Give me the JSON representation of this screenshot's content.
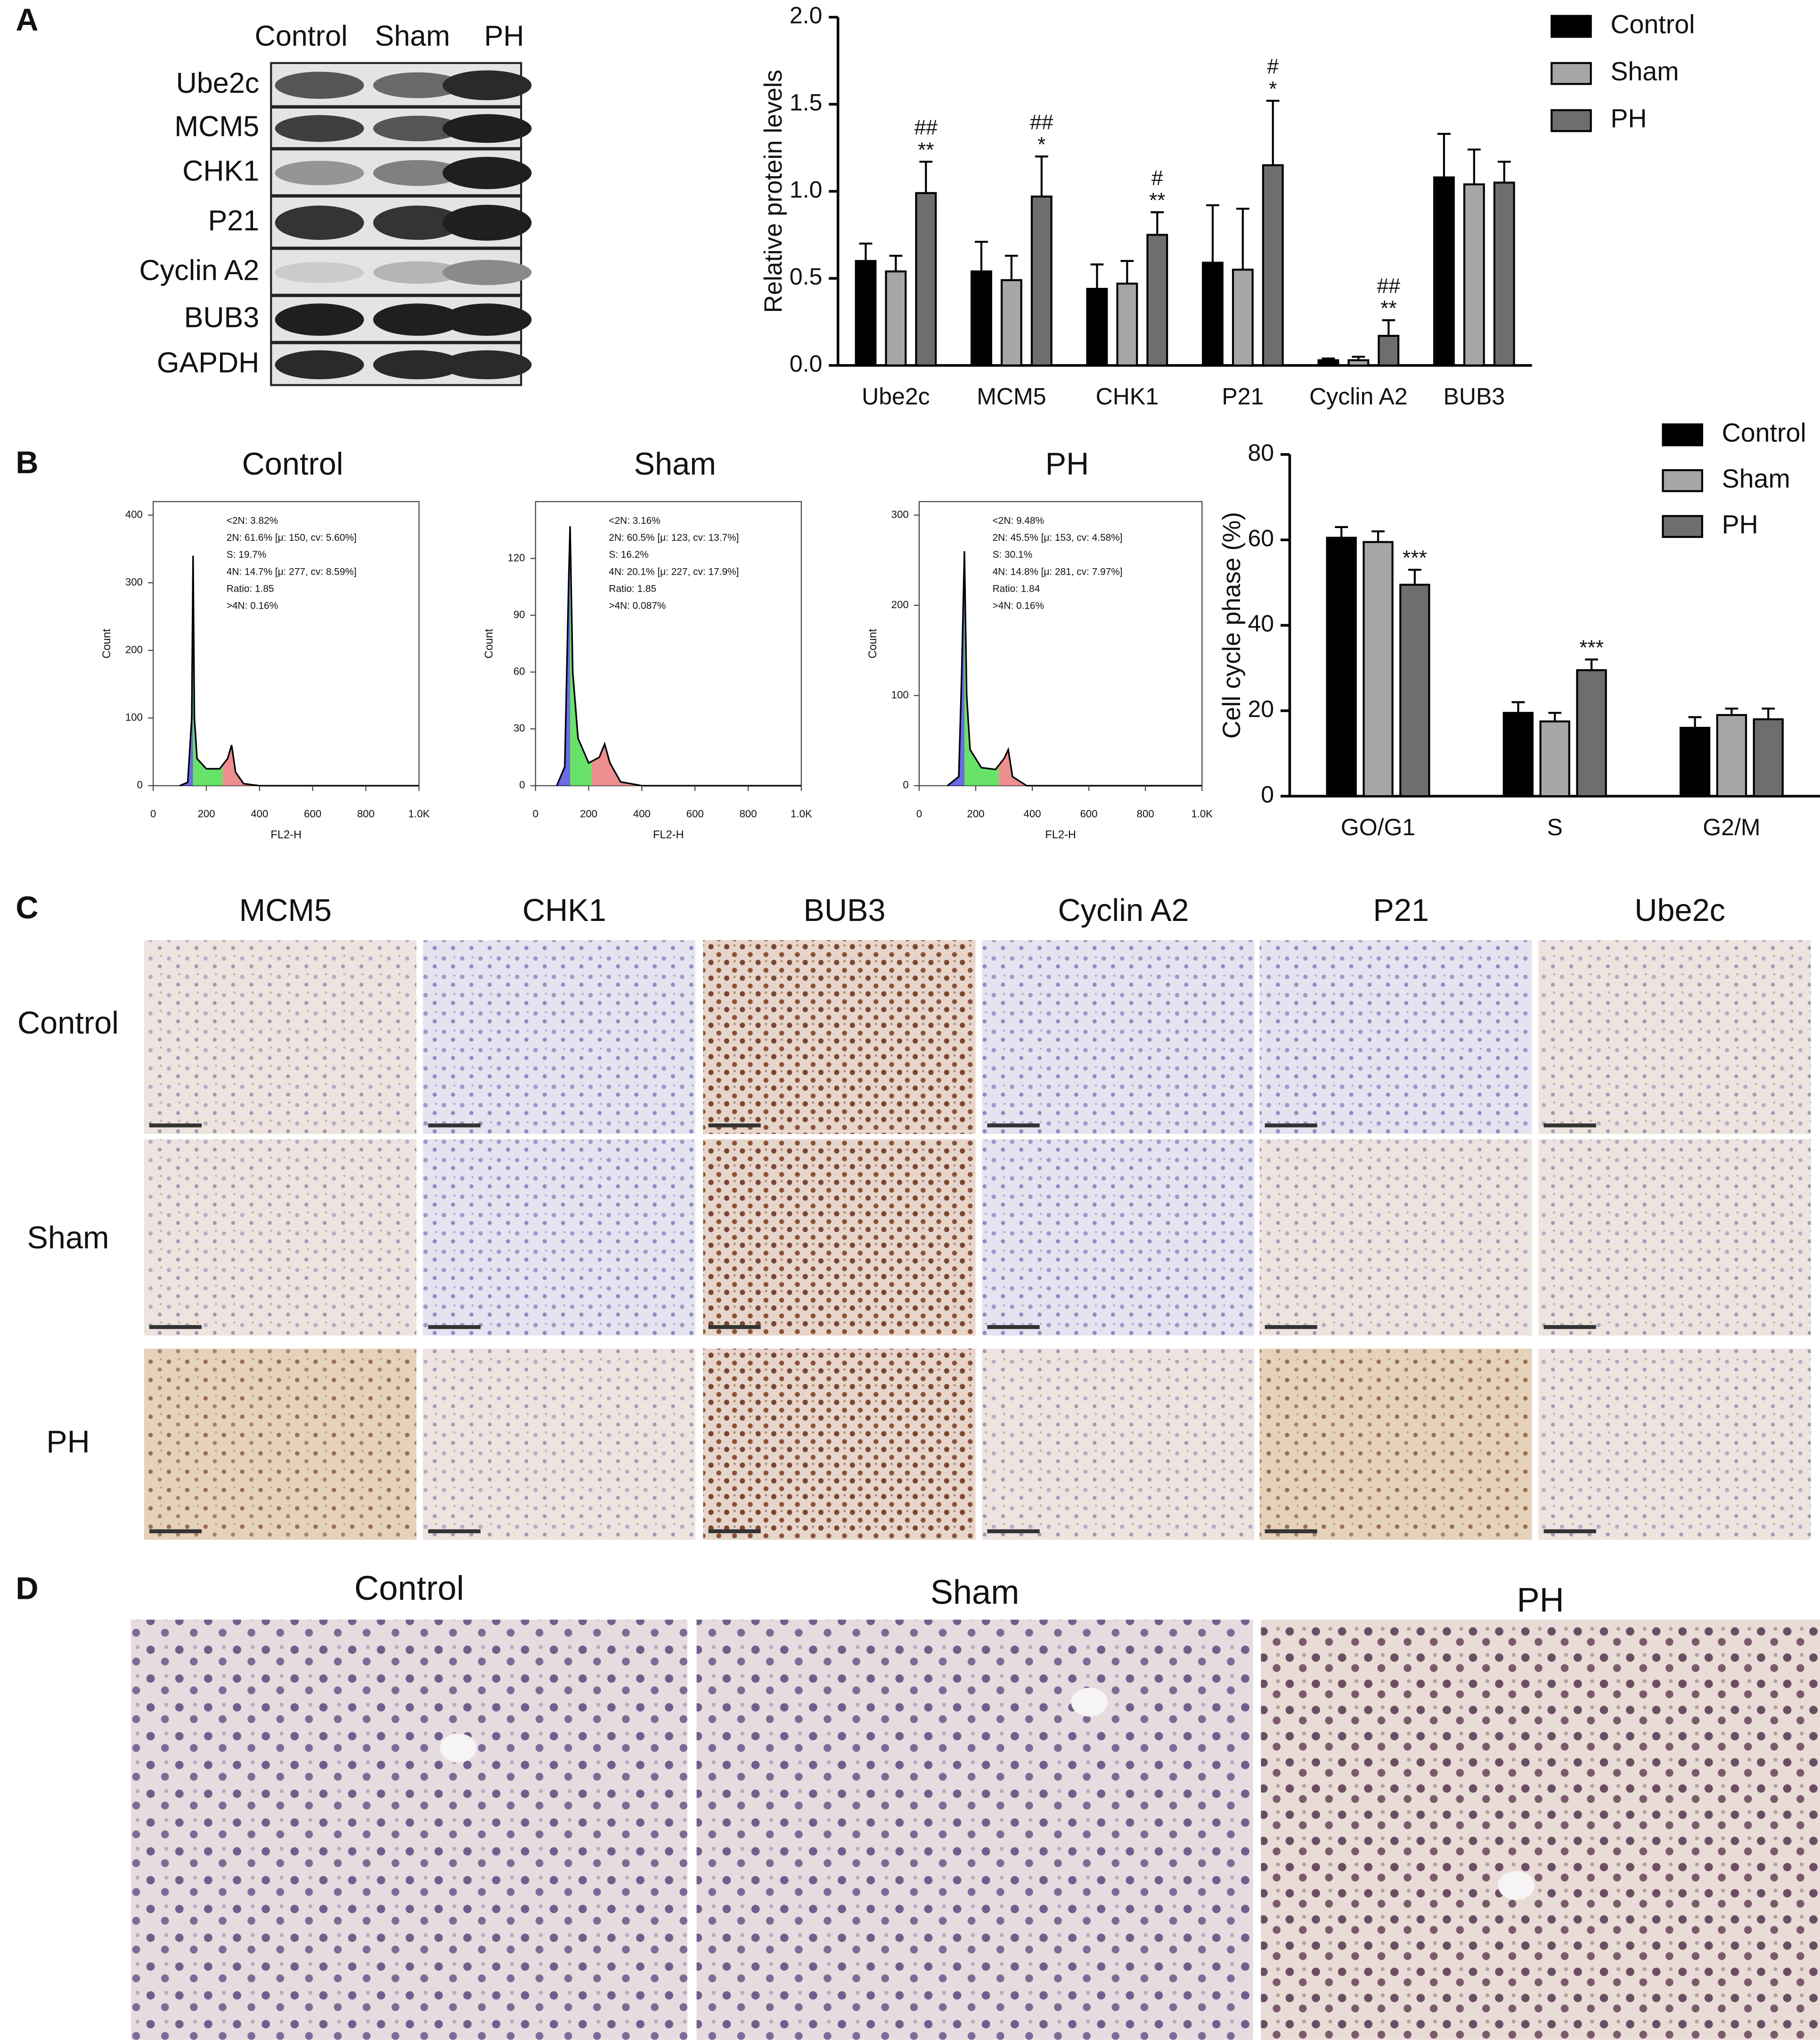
{
  "panel_labels": [
    "A",
    "B",
    "C",
    "D"
  ],
  "western_blot": {
    "columns": [
      "Control",
      "Sham",
      "PH"
    ],
    "rows": [
      "Ube2c",
      "MCM5",
      "CHK1",
      "P21",
      "Cyclin A2",
      "BUB3",
      "GAPDH"
    ]
  },
  "chart_data": [
    {
      "type": "bar",
      "ylabel": "Relative protein levels",
      "categories": [
        "Ube2c",
        "MCM5",
        "CHK1",
        "P21",
        "Cyclin A2",
        "BUB3"
      ],
      "series": [
        {
          "name": "Control",
          "color": "#000000",
          "values": [
            0.6,
            0.54,
            0.44,
            0.59,
            0.03,
            1.08
          ],
          "errors": [
            0.1,
            0.17,
            0.14,
            0.33,
            0.01,
            0.25
          ]
        },
        {
          "name": "Sham",
          "color": "#a6a6a6",
          "values": [
            0.54,
            0.49,
            0.47,
            0.55,
            0.03,
            1.04
          ],
          "errors": [
            0.09,
            0.14,
            0.13,
            0.35,
            0.02,
            0.2
          ]
        },
        {
          "name": "PH",
          "color": "#6e6e6e",
          "values": [
            0.99,
            0.97,
            0.75,
            1.15,
            0.17,
            1.05
          ],
          "errors": [
            0.18,
            0.23,
            0.13,
            0.37,
            0.09,
            0.12
          ],
          "annotations": [
            [
              "##",
              "**"
            ],
            [
              "##",
              "*"
            ],
            [
              "#",
              "**"
            ],
            [
              "#",
              "*"
            ],
            [
              "##",
              "**"
            ],
            null
          ]
        }
      ],
      "ylim": [
        0,
        2
      ],
      "yticks": [
        {
          "value": 0,
          "label": "0.0"
        },
        {
          "value": 0.5,
          "label": "0.5"
        },
        {
          "value": 1,
          "label": "1.0"
        },
        {
          "value": 1.5,
          "label": "1.5"
        },
        {
          "value": 2,
          "label": "2.0"
        }
      ],
      "legend": "right"
    },
    {
      "type": "line",
      "title": "Control",
      "xlabel": "FL2-H",
      "ylabel": "Count",
      "x": [
        100,
        130,
        145,
        150,
        155,
        165,
        200,
        250,
        280,
        295,
        310,
        340,
        400,
        1000
      ],
      "values": [
        0,
        5,
        100,
        340,
        100,
        40,
        25,
        25,
        40,
        60,
        20,
        3,
        0,
        0
      ],
      "xlim": [
        0,
        1000
      ],
      "ylim": [
        0,
        420
      ],
      "xticks": [
        0,
        200,
        400,
        600,
        800,
        {
          "value": 1000,
          "label": "1.0K"
        }
      ],
      "yticks": [
        0,
        100,
        200,
        300,
        400
      ],
      "stats": [
        "<2N: 3.82%",
        "2N: 61.6%  [μ: 150, cv: 5.60%]",
        "S: 19.7%",
        "4N: 14.7%  [μ: 277, cv: 8.59%]",
        "Ratio: 1.85",
        ">4N: 0.16%"
      ]
    },
    {
      "type": "line",
      "title": "Sham",
      "xlabel": "FL2-H",
      "ylabel": "Count",
      "x": [
        80,
        110,
        125,
        130,
        140,
        160,
        200,
        240,
        260,
        280,
        320,
        400,
        1000
      ],
      "values": [
        0,
        10,
        110,
        137,
        60,
        25,
        12,
        15,
        22,
        12,
        2,
        0,
        0
      ],
      "xlim": [
        0,
        1000
      ],
      "ylim": [
        0,
        150
      ],
      "xticks": [
        0,
        200,
        400,
        600,
        800,
        {
          "value": 1000,
          "label": "1.0K"
        }
      ],
      "yticks": [
        0,
        30,
        60,
        90,
        120
      ],
      "stats": [
        "<2N: 3.16%",
        "2N: 60.5%  [μ: 123, cv: 13.7%]",
        "S: 16.2%",
        "4N: 20.1%  [μ: 227, cv: 17.9%]",
        "Ratio: 1.85",
        ">4N: 0.087%"
      ]
    },
    {
      "type": "line",
      "title": "PH",
      "xlabel": "FL2-H",
      "ylabel": "Count",
      "x": [
        100,
        140,
        150,
        160,
        168,
        180,
        220,
        270,
        300,
        315,
        330,
        380,
        1000
      ],
      "values": [
        0,
        10,
        120,
        260,
        100,
        40,
        20,
        18,
        30,
        40,
        10,
        0,
        0
      ],
      "xlim": [
        0,
        1000
      ],
      "ylim": [
        0,
        315
      ],
      "xticks": [
        0,
        200,
        400,
        600,
        800,
        {
          "value": 1000,
          "label": "1.0K"
        }
      ],
      "yticks": [
        0,
        100,
        200,
        300
      ],
      "stats": [
        "<2N: 9.48%",
        "2N: 45.5%  [μ: 153, cv: 4.58%]",
        "S: 30.1%",
        "4N: 14.8%  [μ: 281, cv: 7.97%]",
        "Ratio: 1.84",
        ">4N: 0.16%"
      ]
    },
    {
      "type": "bar",
      "ylabel": "Cell cycle phase (%)",
      "categories": [
        "GO/G1",
        "S",
        "G2/M"
      ],
      "series": [
        {
          "name": "Control",
          "color": "#000000",
          "values": [
            60.5,
            19.5,
            16
          ],
          "errors": [
            2.5,
            2.5,
            2.5
          ]
        },
        {
          "name": "Sham",
          "color": "#a6a6a6",
          "values": [
            59.5,
            17.5,
            19
          ],
          "errors": [
            2.5,
            2,
            1.5
          ]
        },
        {
          "name": "PH",
          "color": "#6e6e6e",
          "values": [
            49.5,
            29.5,
            18
          ],
          "errors": [
            3.5,
            2.5,
            2.5
          ],
          "annotations": [
            [
              "***"
            ],
            [
              "***"
            ],
            null
          ]
        }
      ],
      "ylim": [
        0,
        80
      ],
      "yticks": [
        0,
        20,
        40,
        60,
        80
      ],
      "legend": "right"
    }
  ],
  "ihc": {
    "columns": [
      "MCM5",
      "CHK1",
      "BUB3",
      "Cyclin A2",
      "P21",
      "Ube2c"
    ],
    "rows": [
      "Control",
      "Sham",
      "PH"
    ]
  },
  "ihc_large": {
    "columns": [
      "Control",
      "Sham",
      "PH"
    ]
  }
}
